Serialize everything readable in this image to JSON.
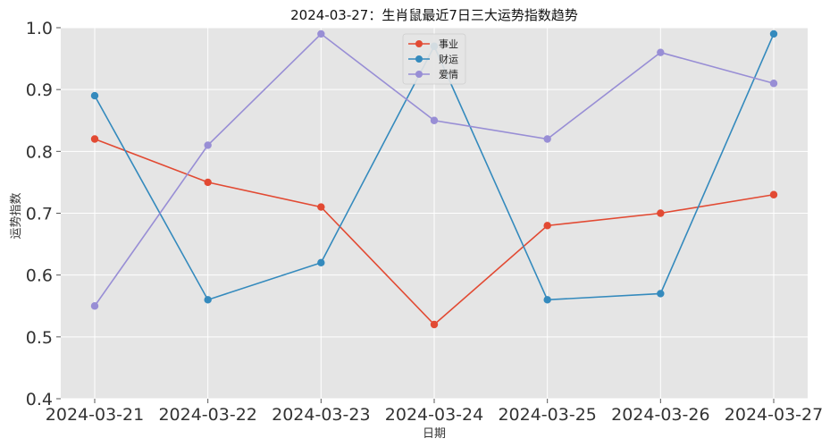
{
  "chart_data": {
    "type": "line",
    "title": "2024-03-27：生肖鼠最近7日三大运势指数趋势",
    "xlabel": "日期",
    "ylabel": "运势指数",
    "categories": [
      "2024-03-21",
      "2024-03-22",
      "2024-03-23",
      "2024-03-24",
      "2024-03-25",
      "2024-03-26",
      "2024-03-27"
    ],
    "ylim": [
      0.4,
      1.0
    ],
    "yticks": [
      "0.4",
      "0.5",
      "0.6",
      "0.7",
      "0.8",
      "0.9",
      "1.0"
    ],
    "grid": true,
    "legend_position": "top-center",
    "series": [
      {
        "name": "事业",
        "color": "#E24A33",
        "values": [
          0.82,
          0.75,
          0.71,
          0.52,
          0.68,
          0.7,
          0.73
        ]
      },
      {
        "name": "财运",
        "color": "#348ABD",
        "values": [
          0.89,
          0.56,
          0.62,
          0.97,
          0.56,
          0.57,
          0.99
        ]
      },
      {
        "name": "爱情",
        "color": "#988ED5",
        "values": [
          0.55,
          0.81,
          0.99,
          0.85,
          0.82,
          0.96,
          0.91
        ]
      }
    ]
  }
}
